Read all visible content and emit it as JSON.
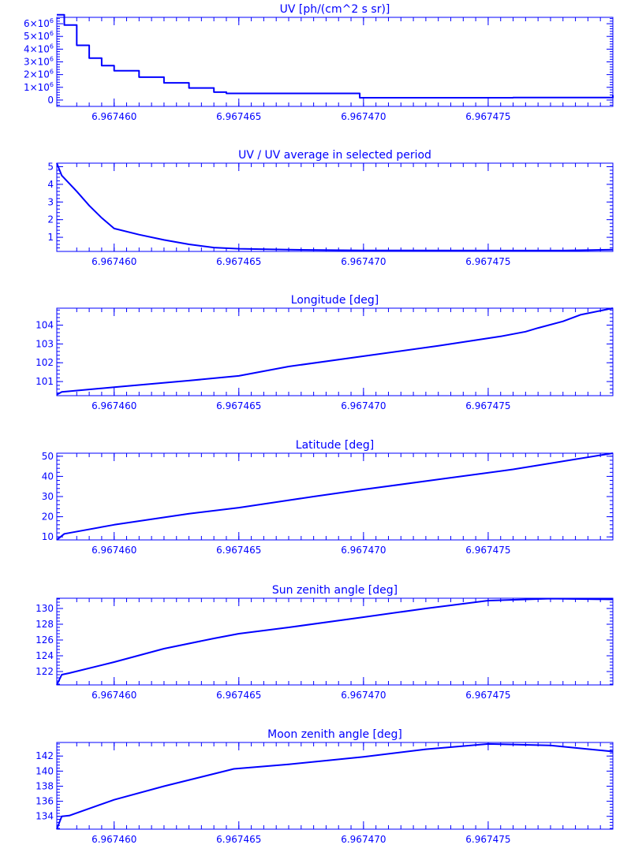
{
  "chart_data": [
    {
      "type": "line",
      "title": "UV [ph/(cm^2 s sr)]",
      "xlim": [
        6.9674577,
        6.96748
      ],
      "ylim": [
        -500000,
        6500000
      ],
      "x_ticks": [
        "6.967460",
        "6.967465",
        "6.967470",
        "6.967475"
      ],
      "x_tick_values": [
        6.96746,
        6.967465,
        6.96747,
        6.967475
      ],
      "y_tick_values": [
        0,
        1000000,
        2000000,
        3000000,
        4000000,
        5000000,
        6000000
      ],
      "y_tick_labels": [
        {
          "base": "0",
          "sup": ""
        },
        {
          "base": "1×10",
          "sup": "6"
        },
        {
          "base": "2×10",
          "sup": "6"
        },
        {
          "base": "3×10",
          "sup": "6"
        },
        {
          "base": "4×10",
          "sup": "6"
        },
        {
          "base": "5×10",
          "sup": "6"
        },
        {
          "base": "6×10",
          "sup": "6"
        }
      ],
      "step": true,
      "x": [
        6.9674577,
        6.967458,
        6.9674585,
        6.967459,
        6.9674595,
        6.96746,
        6.967461,
        6.967462,
        6.967463,
        6.967464,
        6.9674645,
        6.9674698,
        6.96746985,
        6.9674755,
        6.967476,
        6.9674785,
        6.96748
      ],
      "y": [
        6700000,
        5900000,
        4300000,
        3300000,
        2700000,
        2300000,
        1800000,
        1350000,
        950000,
        620000,
        520000,
        520000,
        180000,
        180000,
        200000,
        200000,
        380000
      ]
    },
    {
      "type": "line",
      "title": "UV / UV average in selected period",
      "xlim": [
        6.9674577,
        6.96748
      ],
      "ylim": [
        0.2,
        5.2
      ],
      "x_ticks": [
        "6.967460",
        "6.967465",
        "6.967470",
        "6.967475"
      ],
      "x_tick_values": [
        6.96746,
        6.967465,
        6.96747,
        6.967475
      ],
      "y_tick_values": [
        1,
        2,
        3,
        4,
        5
      ],
      "y_tick_labels": [
        {
          "base": "1",
          "sup": ""
        },
        {
          "base": "2",
          "sup": ""
        },
        {
          "base": "3",
          "sup": ""
        },
        {
          "base": "4",
          "sup": ""
        },
        {
          "base": "5",
          "sup": ""
        }
      ],
      "step": false,
      "x": [
        6.9674577,
        6.9674579,
        6.9674585,
        6.967459,
        6.9674595,
        6.96746,
        6.967461,
        6.967462,
        6.967463,
        6.967464,
        6.967465,
        6.967467,
        6.96747,
        6.967475,
        6.967478,
        6.96748
      ],
      "y": [
        5.2,
        4.5,
        3.6,
        2.8,
        2.1,
        1.5,
        1.15,
        0.85,
        0.6,
        0.42,
        0.35,
        0.3,
        0.26,
        0.25,
        0.25,
        0.3
      ]
    },
    {
      "type": "line",
      "title": "Longitude [deg]",
      "xlim": [
        6.9674577,
        6.96748
      ],
      "ylim": [
        100.25,
        104.9
      ],
      "x_ticks": [
        "6.967460",
        "6.967465",
        "6.967470",
        "6.967475"
      ],
      "x_tick_values": [
        6.96746,
        6.967465,
        6.96747,
        6.967475
      ],
      "y_tick_values": [
        101,
        102,
        103,
        104
      ],
      "y_tick_labels": [
        {
          "base": "101",
          "sup": ""
        },
        {
          "base": "102",
          "sup": ""
        },
        {
          "base": "103",
          "sup": ""
        },
        {
          "base": "104",
          "sup": ""
        }
      ],
      "step": false,
      "x": [
        6.9674577,
        6.9674579,
        6.96746,
        6.967463,
        6.967465,
        6.967467,
        6.96747,
        6.967473,
        6.9674755,
        6.9674765,
        6.967477,
        6.967478,
        6.9674787,
        6.96748
      ],
      "y": [
        100.3,
        100.45,
        100.7,
        101.05,
        101.3,
        101.8,
        102.35,
        102.9,
        103.4,
        103.65,
        103.85,
        104.2,
        104.55,
        104.9
      ]
    },
    {
      "type": "line",
      "title": "Latitude [deg]",
      "xlim": [
        6.9674577,
        6.96748
      ],
      "ylim": [
        8.5,
        51.5
      ],
      "x_ticks": [
        "6.967460",
        "6.967465",
        "6.967470",
        "6.967475"
      ],
      "x_tick_values": [
        6.96746,
        6.967465,
        6.96747,
        6.967475
      ],
      "y_tick_values": [
        10,
        20,
        30,
        40,
        50
      ],
      "y_tick_labels": [
        {
          "base": "10",
          "sup": ""
        },
        {
          "base": "20",
          "sup": ""
        },
        {
          "base": "30",
          "sup": ""
        },
        {
          "base": "40",
          "sup": ""
        },
        {
          "base": "50",
          "sup": ""
        }
      ],
      "step": false,
      "x": [
        6.9674577,
        6.967458,
        6.96746,
        6.967463,
        6.967465,
        6.967468,
        6.96747,
        6.967473,
        6.967476,
        6.96748
      ],
      "y": [
        8.5,
        11.5,
        16,
        21.5,
        24.5,
        30,
        33.5,
        38.5,
        43.5,
        51.5
      ]
    },
    {
      "type": "line",
      "title": "Sun zenith angle [deg]",
      "xlim": [
        6.9674577,
        6.96748
      ],
      "ylim": [
        120.3,
        131.3
      ],
      "x_ticks": [
        "6.967460",
        "6.967465",
        "6.967470",
        "6.967475"
      ],
      "x_tick_values": [
        6.96746,
        6.967465,
        6.96747,
        6.967475
      ],
      "y_tick_values": [
        122,
        124,
        126,
        128,
        130
      ],
      "y_tick_labels": [
        {
          "base": "122",
          "sup": ""
        },
        {
          "base": "124",
          "sup": ""
        },
        {
          "base": "126",
          "sup": ""
        },
        {
          "base": "128",
          "sup": ""
        },
        {
          "base": "130",
          "sup": ""
        }
      ],
      "step": false,
      "x": [
        6.9674577,
        6.9674579,
        6.9674582,
        6.96746,
        6.967462,
        6.967464,
        6.967465,
        6.967467,
        6.96747,
        6.9674725,
        6.967475,
        6.9674775,
        6.96748
      ],
      "y": [
        120.3,
        121.6,
        121.8,
        123.2,
        124.9,
        126.2,
        126.8,
        127.6,
        128.9,
        130.0,
        131.0,
        131.25,
        131.15
      ]
    },
    {
      "type": "line",
      "title": "Moon zenith angle [deg]",
      "xlim": [
        6.9674577,
        6.96748
      ],
      "ylim": [
        132.3,
        143.8
      ],
      "x_ticks": [
        "6.967460",
        "6.967465",
        "6.967470",
        "6.967475"
      ],
      "x_tick_values": [
        6.96746,
        6.967465,
        6.96747,
        6.967475
      ],
      "y_tick_values": [
        134,
        136,
        138,
        140,
        142
      ],
      "y_tick_labels": [
        {
          "base": "134",
          "sup": ""
        },
        {
          "base": "136",
          "sup": ""
        },
        {
          "base": "138",
          "sup": ""
        },
        {
          "base": "140",
          "sup": ""
        },
        {
          "base": "142",
          "sup": ""
        }
      ],
      "step": false,
      "x": [
        6.9674577,
        6.9674579,
        6.9674582,
        6.96746,
        6.967462,
        6.9674648,
        6.967467,
        6.96747,
        6.9674725,
        6.967475,
        6.9674775,
        6.96748
      ],
      "y": [
        132.3,
        134.0,
        134.1,
        136.2,
        138.0,
        140.3,
        140.9,
        141.9,
        142.9,
        143.6,
        143.4,
        142.6
      ]
    }
  ]
}
